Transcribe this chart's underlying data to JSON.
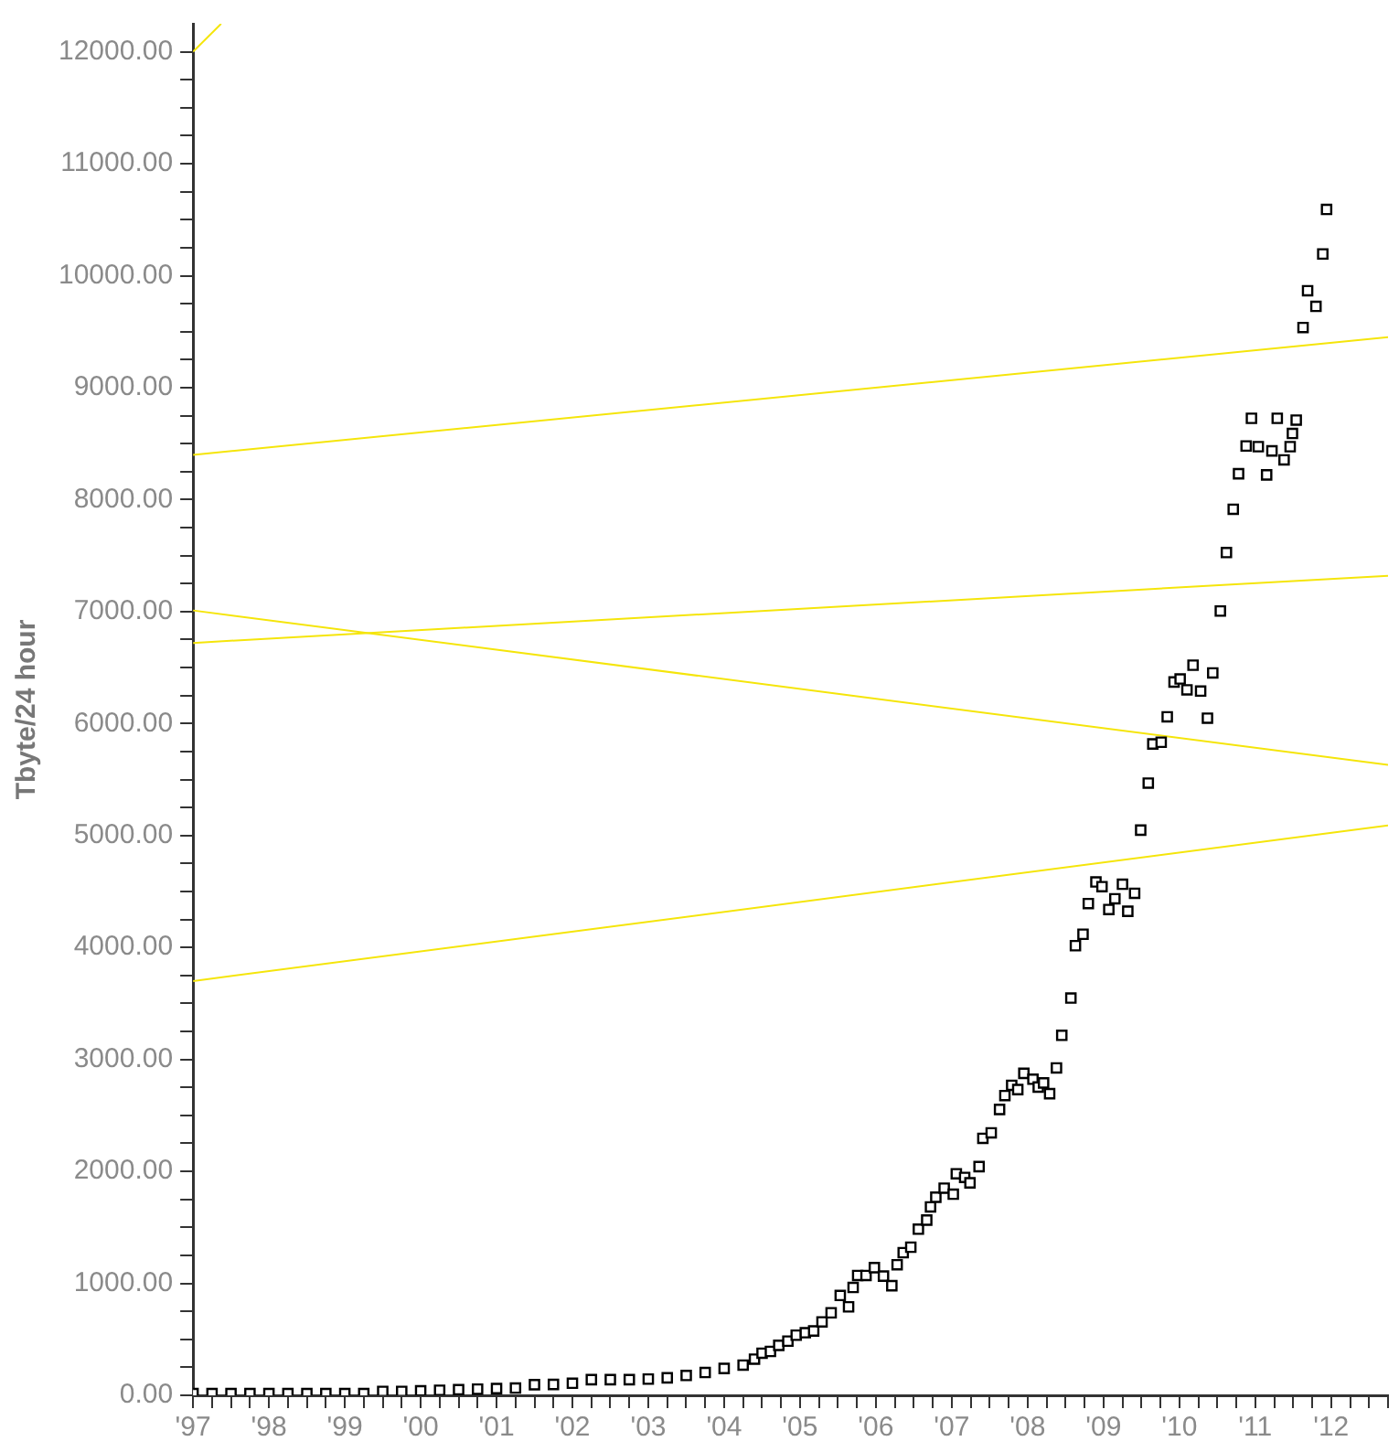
{
  "chart_data": {
    "type": "scatter",
    "ylabel": "Tbyte/24 hour",
    "marker": "square",
    "grid": false,
    "xlim": [
      1997,
      2012.75
    ],
    "ylim": [
      0,
      12250
    ],
    "xticks": [
      {
        "value": 1997,
        "label": "'97"
      },
      {
        "value": 1997.25,
        "label": null
      },
      {
        "value": 1997.5,
        "label": null
      },
      {
        "value": 1997.75,
        "label": null
      },
      {
        "value": 1998,
        "label": "'98"
      },
      {
        "value": 1998.25,
        "label": null
      },
      {
        "value": 1998.5,
        "label": null
      },
      {
        "value": 1998.75,
        "label": null
      },
      {
        "value": 1999,
        "label": "'99"
      },
      {
        "value": 1999.25,
        "label": null
      },
      {
        "value": 1999.5,
        "label": null
      },
      {
        "value": 1999.75,
        "label": null
      },
      {
        "value": 2000,
        "label": "'00"
      },
      {
        "value": 2000.25,
        "label": null
      },
      {
        "value": 2000.5,
        "label": null
      },
      {
        "value": 2000.75,
        "label": null
      },
      {
        "value": 2001,
        "label": "'01"
      },
      {
        "value": 2001.25,
        "label": null
      },
      {
        "value": 2001.5,
        "label": null
      },
      {
        "value": 2001.75,
        "label": null
      },
      {
        "value": 2002,
        "label": "'02"
      },
      {
        "value": 2002.25,
        "label": null
      },
      {
        "value": 2002.5,
        "label": null
      },
      {
        "value": 2002.75,
        "label": null
      },
      {
        "value": 2003,
        "label": "'03"
      },
      {
        "value": 2003.25,
        "label": null
      },
      {
        "value": 2003.5,
        "label": null
      },
      {
        "value": 2003.75,
        "label": null
      },
      {
        "value": 2004,
        "label": "'04"
      },
      {
        "value": 2004.25,
        "label": null
      },
      {
        "value": 2004.5,
        "label": null
      },
      {
        "value": 2004.75,
        "label": null
      },
      {
        "value": 2005,
        "label": "'05"
      },
      {
        "value": 2005.25,
        "label": null
      },
      {
        "value": 2005.5,
        "label": null
      },
      {
        "value": 2005.75,
        "label": null
      },
      {
        "value": 2006,
        "label": "'06"
      },
      {
        "value": 2006.25,
        "label": null
      },
      {
        "value": 2006.5,
        "label": null
      },
      {
        "value": 2006.75,
        "label": null
      },
      {
        "value": 2007,
        "label": "'07"
      },
      {
        "value": 2007.25,
        "label": null
      },
      {
        "value": 2007.5,
        "label": null
      },
      {
        "value": 2007.75,
        "label": null
      },
      {
        "value": 2008,
        "label": "'08"
      },
      {
        "value": 2008.25,
        "label": null
      },
      {
        "value": 2008.5,
        "label": null
      },
      {
        "value": 2008.75,
        "label": null
      },
      {
        "value": 2009,
        "label": "'09"
      },
      {
        "value": 2009.25,
        "label": null
      },
      {
        "value": 2009.5,
        "label": null
      },
      {
        "value": 2009.75,
        "label": null
      },
      {
        "value": 2010,
        "label": "'10"
      },
      {
        "value": 2010.25,
        "label": null
      },
      {
        "value": 2010.5,
        "label": null
      },
      {
        "value": 2010.75,
        "label": null
      },
      {
        "value": 2011,
        "label": "'11"
      },
      {
        "value": 2011.25,
        "label": null
      },
      {
        "value": 2011.5,
        "label": null
      },
      {
        "value": 2011.75,
        "label": null
      },
      {
        "value": 2012,
        "label": "'12"
      },
      {
        "value": 2012.25,
        "label": null
      },
      {
        "value": 2012.5,
        "label": null
      },
      {
        "value": 2012.75,
        "label": null
      }
    ],
    "yticks": [
      {
        "value": 0,
        "label": "0.00"
      },
      {
        "value": 250,
        "label": null
      },
      {
        "value": 500,
        "label": null
      },
      {
        "value": 750,
        "label": null
      },
      {
        "value": 1000,
        "label": "1000.00"
      },
      {
        "value": 1250,
        "label": null
      },
      {
        "value": 1500,
        "label": null
      },
      {
        "value": 1750,
        "label": null
      },
      {
        "value": 2000,
        "label": "2000.00"
      },
      {
        "value": 2250,
        "label": null
      },
      {
        "value": 2500,
        "label": null
      },
      {
        "value": 2750,
        "label": null
      },
      {
        "value": 3000,
        "label": "3000.00"
      },
      {
        "value": 3250,
        "label": null
      },
      {
        "value": 3500,
        "label": null
      },
      {
        "value": 3750,
        "label": null
      },
      {
        "value": 4000,
        "label": "4000.00"
      },
      {
        "value": 4250,
        "label": null
      },
      {
        "value": 4500,
        "label": null
      },
      {
        "value": 4750,
        "label": null
      },
      {
        "value": 5000,
        "label": "5000.00"
      },
      {
        "value": 5250,
        "label": null
      },
      {
        "value": 5500,
        "label": null
      },
      {
        "value": 5750,
        "label": null
      },
      {
        "value": 6000,
        "label": "6000.00"
      },
      {
        "value": 6250,
        "label": null
      },
      {
        "value": 6500,
        "label": null
      },
      {
        "value": 6750,
        "label": null
      },
      {
        "value": 7000,
        "label": "7000.00"
      },
      {
        "value": 7250,
        "label": null
      },
      {
        "value": 7500,
        "label": null
      },
      {
        "value": 7750,
        "label": null
      },
      {
        "value": 8000,
        "label": "8000.00"
      },
      {
        "value": 8250,
        "label": null
      },
      {
        "value": 8500,
        "label": null
      },
      {
        "value": 8750,
        "label": null
      },
      {
        "value": 9000,
        "label": "9000.00"
      },
      {
        "value": 9250,
        "label": null
      },
      {
        "value": 9500,
        "label": null
      },
      {
        "value": 9750,
        "label": null
      },
      {
        "value": 10000,
        "label": "10000.00"
      },
      {
        "value": 10250,
        "label": null
      },
      {
        "value": 10500,
        "label": null
      },
      {
        "value": 10750,
        "label": null
      },
      {
        "value": 11000,
        "label": "11000.00"
      },
      {
        "value": 11250,
        "label": null
      },
      {
        "value": 11500,
        "label": null
      },
      {
        "value": 11750,
        "label": null
      },
      {
        "value": 12000,
        "label": "12000.00"
      }
    ],
    "series": [
      {
        "type": "line",
        "marker": "none",
        "color": "#f5e50a",
        "x": [
          1997,
          1997.37
        ],
        "values": [
          12000,
          12250
        ]
      },
      {
        "type": "line",
        "marker": "none",
        "color": "#f5e50a",
        "x": [
          1997,
          2012.75
        ],
        "values": [
          8400,
          9450
        ]
      },
      {
        "type": "line",
        "marker": "none",
        "color": "#f5e50a",
        "x": [
          1997,
          2012.75
        ],
        "values": [
          6720,
          7320
        ]
      },
      {
        "type": "line",
        "marker": "none",
        "color": "#f5e50a",
        "x": [
          1997,
          2012.75
        ],
        "values": [
          7010,
          5630
        ]
      },
      {
        "type": "line",
        "marker": "none",
        "color": "#f5e50a",
        "x": [
          1997,
          2012.75
        ],
        "values": [
          3700,
          5090
        ]
      },
      {
        "color": "#000000",
        "x": [
          1997,
          1997.25,
          1997.5,
          1997.75,
          1998,
          1998.25,
          1998.5,
          1998.75,
          1999,
          1999.25,
          1999.5,
          1999.75,
          2000,
          2000.25,
          2000.5,
          2000.75,
          2001,
          2001.25,
          2001.5,
          2001.75,
          2002,
          2002.25,
          2002.5,
          2002.75,
          2003,
          2003.25,
          2003.5,
          2003.75,
          2004,
          2004.25,
          2004.4,
          2004.5,
          2004.61,
          2004.72,
          2004.84,
          2004.95,
          2005.07,
          2005.18,
          2005.29,
          2005.41,
          2005.53,
          2005.64,
          2005.7,
          2005.76,
          2005.87,
          2005.98,
          2006.1,
          2006.21,
          2006.28,
          2006.36,
          2006.46,
          2006.56,
          2006.67,
          2006.72,
          2006.79,
          2006.9,
          2007.02,
          2007.06,
          2007.17,
          2007.24,
          2007.36,
          2007.41,
          2007.52,
          2007.63,
          2007.7,
          2007.79,
          2007.87,
          2007.95,
          2008.07,
          2008.14,
          2008.21,
          2008.29,
          2008.38,
          2008.45,
          2008.57,
          2008.63,
          2008.73,
          2008.8,
          2008.9,
          2008.98,
          2009.07,
          2009.15,
          2009.25,
          2009.32,
          2009.41,
          2009.49,
          2009.59,
          2009.65,
          2009.76,
          2009.84,
          2009.93,
          2010.01,
          2010.1,
          2010.18,
          2010.28,
          2010.37,
          2010.44,
          2010.54,
          2010.62,
          2010.71,
          2010.78,
          2010.88,
          2010.95,
          2011.04,
          2011.15,
          2011.22,
          2011.29,
          2011.38,
          2011.46,
          2011.49,
          2011.54,
          2011.63,
          2011.69,
          2011.8,
          2011.89,
          2011.94
        ],
        "values": [
          15,
          15,
          15,
          15,
          15,
          15,
          15,
          15,
          15,
          15,
          35,
          35,
          40,
          45,
          50,
          55,
          60,
          65,
          95,
          97,
          108,
          140,
          140,
          140,
          145,
          156,
          177,
          204,
          240,
          270,
          323,
          376,
          392,
          446,
          484,
          537,
          559,
          575,
          656,
          737,
          892,
          790,
          963,
          1070,
          1070,
          1140,
          1065,
          979,
          1166,
          1274,
          1323,
          1484,
          1565,
          1683,
          1769,
          1850,
          1796,
          1979,
          1946,
          1898,
          2043,
          2295,
          2344,
          2553,
          2677,
          2769,
          2731,
          2876,
          2823,
          2753,
          2790,
          2694,
          2924,
          3215,
          3548,
          4016,
          4118,
          4392,
          4585,
          4543,
          4339,
          4435,
          4565,
          4323,
          4484,
          5048,
          5468,
          5818,
          5833,
          6060,
          6371,
          6398,
          6301,
          6521,
          6290,
          6048,
          6452,
          7005,
          7527,
          7914,
          8231,
          8479,
          8726,
          8473,
          8221,
          8435,
          8726,
          8355,
          8473,
          8591,
          8710,
          9537,
          9866,
          9726,
          10194,
          10592
        ]
      }
    ]
  }
}
